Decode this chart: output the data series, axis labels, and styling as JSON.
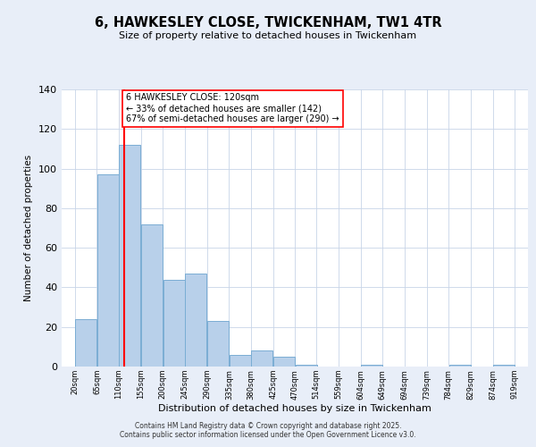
{
  "title": "6, HAWKESLEY CLOSE, TWICKENHAM, TW1 4TR",
  "subtitle": "Size of property relative to detached houses in Twickenham",
  "xlabel": "Distribution of detached houses by size in Twickenham",
  "ylabel": "Number of detached properties",
  "bar_left_edges": [
    20,
    65,
    110,
    155,
    200,
    245,
    290,
    335,
    380,
    425,
    470,
    514,
    559,
    604,
    649,
    694,
    739,
    784,
    829,
    874
  ],
  "bar_heights": [
    24,
    97,
    112,
    72,
    44,
    47,
    23,
    6,
    8,
    5,
    1,
    0,
    0,
    1,
    0,
    0,
    0,
    1,
    0,
    1
  ],
  "bin_width": 45,
  "bar_color": "#b8d0ea",
  "bar_edge_color": "#7aadd4",
  "vline_x": 120,
  "vline_color": "red",
  "ylim": [
    0,
    140
  ],
  "yticks": [
    0,
    20,
    40,
    60,
    80,
    100,
    120,
    140
  ],
  "xtick_labels": [
    "20sqm",
    "65sqm",
    "110sqm",
    "155sqm",
    "200sqm",
    "245sqm",
    "290sqm",
    "335sqm",
    "380sqm",
    "425sqm",
    "470sqm",
    "514sqm",
    "559sqm",
    "604sqm",
    "649sqm",
    "694sqm",
    "739sqm",
    "784sqm",
    "829sqm",
    "874sqm",
    "919sqm"
  ],
  "xtick_positions": [
    20,
    65,
    110,
    155,
    200,
    245,
    290,
    335,
    380,
    425,
    470,
    514,
    559,
    604,
    649,
    694,
    739,
    784,
    829,
    874,
    919
  ],
  "annotation_title": "6 HAWKESLEY CLOSE: 120sqm",
  "annotation_line1": "← 33% of detached houses are smaller (142)",
  "annotation_line2": "67% of semi-detached houses are larger (290) →",
  "annotation_box_color": "#ffffff",
  "annotation_box_edge": "red",
  "footer1": "Contains HM Land Registry data © Crown copyright and database right 2025.",
  "footer2": "Contains public sector information licensed under the Open Government Licence v3.0.",
  "bg_color": "#e8eef8",
  "plot_bg_color": "#ffffff"
}
